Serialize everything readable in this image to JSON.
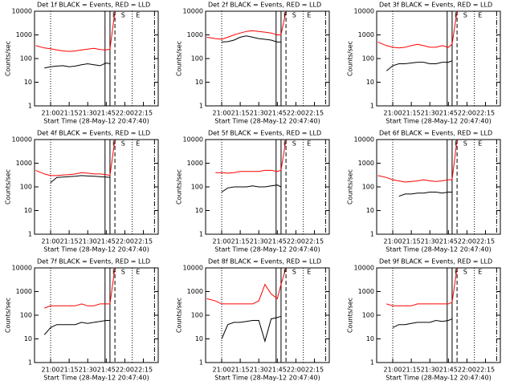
{
  "chart_data": [
    {
      "type": "line",
      "title": "Det 1f BLACK = Events, RED = LLD",
      "xlabel": "Start Time (28-May-12 20:47:40)",
      "ylabel": "Counts/sec",
      "log_y": true,
      "x": [
        "20:48",
        "20:55",
        "21:00",
        "21:05",
        "21:10",
        "21:15",
        "21:20",
        "21:25",
        "21:30",
        "21:35",
        "21:40",
        "21:45",
        "21:48",
        "21:52"
      ],
      "series": [
        {
          "name": "LLD",
          "color": "#ff0000",
          "values": [
            350,
            280,
            260,
            230,
            210,
            200,
            210,
            230,
            250,
            270,
            240,
            230,
            250,
            10000
          ]
        },
        {
          "name": "Events",
          "color": "#000000",
          "values": [
            null,
            40,
            45,
            48,
            50,
            45,
            48,
            55,
            60,
            55,
            50,
            65,
            60,
            null
          ]
        }
      ],
      "xlim": [
        "20:47",
        "22:27"
      ],
      "xticks": [
        "21:00",
        "21:15",
        "21:30",
        "21:45",
        "22:00",
        "22:15"
      ],
      "ylim": [
        1,
        10000
      ],
      "yticks": [
        1,
        10,
        100,
        1000,
        10000
      ],
      "vlines": [
        {
          "x": "21:00",
          "style": "dotted"
        },
        {
          "x": "21:44",
          "style": "solid"
        },
        {
          "x": "21:48",
          "style": "solid"
        },
        {
          "x": "21:52",
          "style": "dashed"
        },
        {
          "x": "22:06",
          "style": "dotted"
        },
        {
          "x": "22:24",
          "style": "dashdot"
        }
      ],
      "annotations": [
        {
          "text": "F",
          "x": "21:48"
        },
        {
          "text": "S",
          "x": "21:55"
        },
        {
          "text": "E",
          "x": "22:07"
        }
      ]
    },
    {
      "type": "line",
      "title": "Det 2f BLACK = Events, RED = LLD",
      "xlabel": "Start Time (28-May-12 20:47:40)",
      "ylabel": "Counts/sec",
      "log_y": true,
      "x": [
        "20:48",
        "20:55",
        "21:00",
        "21:05",
        "21:10",
        "21:15",
        "21:20",
        "21:25",
        "21:30",
        "21:35",
        "21:40",
        "21:45",
        "21:48",
        "21:52"
      ],
      "series": [
        {
          "name": "LLD",
          "color": "#ff0000",
          "values": [
            800,
            700,
            650,
            800,
            1000,
            1200,
            1400,
            1500,
            1400,
            1300,
            1200,
            1000,
            1000,
            10000
          ]
        },
        {
          "name": "Events",
          "color": "#000000",
          "values": [
            null,
            null,
            500,
            520,
            600,
            800,
            900,
            800,
            700,
            650,
            600,
            500,
            500,
            null
          ]
        }
      ],
      "xlim": [
        "20:47",
        "22:27"
      ],
      "xticks": [
        "21:00",
        "21:15",
        "21:30",
        "21:45",
        "22:00",
        "22:15"
      ],
      "ylim": [
        1,
        10000
      ],
      "yticks": [
        1,
        10,
        100,
        1000,
        10000
      ],
      "vlines": [
        {
          "x": "21:00",
          "style": "dotted"
        },
        {
          "x": "21:44",
          "style": "solid"
        },
        {
          "x": "21:48",
          "style": "solid"
        },
        {
          "x": "21:52",
          "style": "dashed"
        },
        {
          "x": "22:06",
          "style": "dotted"
        },
        {
          "x": "22:24",
          "style": "dashdot"
        }
      ],
      "annotations": [
        {
          "text": "F",
          "x": "21:48"
        },
        {
          "text": "S",
          "x": "21:55"
        },
        {
          "text": "E",
          "x": "22:07"
        }
      ]
    },
    {
      "type": "line",
      "title": "Det 3f BLACK = Events, RED = LLD",
      "xlabel": "Start Time (28-May-12 20:47:40)",
      "ylabel": "Counts/sec",
      "log_y": true,
      "x": [
        "20:48",
        "20:55",
        "21:00",
        "21:05",
        "21:10",
        "21:15",
        "21:20",
        "21:25",
        "21:30",
        "21:35",
        "21:40",
        "21:45",
        "21:48",
        "21:52"
      ],
      "series": [
        {
          "name": "LLD",
          "color": "#ff0000",
          "values": [
            500,
            350,
            300,
            280,
            300,
            350,
            400,
            350,
            300,
            300,
            350,
            300,
            400,
            10000
          ]
        },
        {
          "name": "Events",
          "color": "#000000",
          "values": [
            null,
            30,
            50,
            60,
            60,
            65,
            70,
            70,
            60,
            60,
            70,
            70,
            80,
            null
          ]
        }
      ],
      "xlim": [
        "20:47",
        "22:27"
      ],
      "xticks": [
        "21:00",
        "21:15",
        "21:30",
        "21:45",
        "22:00",
        "22:15"
      ],
      "ylim": [
        1,
        10000
      ],
      "yticks": [
        1,
        10,
        100,
        1000,
        10000
      ],
      "vlines": [
        {
          "x": "21:00",
          "style": "dotted"
        },
        {
          "x": "21:44",
          "style": "solid"
        },
        {
          "x": "21:48",
          "style": "solid"
        },
        {
          "x": "21:52",
          "style": "dashed"
        },
        {
          "x": "22:06",
          "style": "dotted"
        },
        {
          "x": "22:24",
          "style": "dashdot"
        }
      ],
      "annotations": [
        {
          "text": "F",
          "x": "21:48"
        },
        {
          "text": "S",
          "x": "21:55"
        },
        {
          "text": "E",
          "x": "22:07"
        }
      ]
    },
    {
      "type": "line",
      "title": "Det 4f BLACK = Events, RED = LLD",
      "xlabel": "Start Time (28-May-12 20:47:40)",
      "ylabel": "Counts/sec",
      "log_y": true,
      "x": [
        "20:48",
        "20:55",
        "21:00",
        "21:05",
        "21:10",
        "21:15",
        "21:20",
        "21:25",
        "21:30",
        "21:35",
        "21:40",
        "21:45",
        "21:48",
        "21:52"
      ],
      "series": [
        {
          "name": "LLD",
          "color": "#ff0000",
          "values": [
            500,
            350,
            300,
            300,
            320,
            330,
            350,
            400,
            380,
            350,
            350,
            330,
            300,
            10000
          ]
        },
        {
          "name": "Events",
          "color": "#000000",
          "values": [
            null,
            null,
            150,
            250,
            260,
            270,
            280,
            300,
            290,
            280,
            270,
            260,
            250,
            null
          ]
        }
      ],
      "xlim": [
        "20:47",
        "22:27"
      ],
      "xticks": [
        "21:00",
        "21:15",
        "21:30",
        "21:45",
        "22:00",
        "22:15"
      ],
      "ylim": [
        1,
        10000
      ],
      "yticks": [
        1,
        10,
        100,
        1000,
        10000
      ],
      "vlines": [
        {
          "x": "21:00",
          "style": "dotted"
        },
        {
          "x": "21:44",
          "style": "solid"
        },
        {
          "x": "21:48",
          "style": "solid"
        },
        {
          "x": "21:52",
          "style": "dashed"
        },
        {
          "x": "22:06",
          "style": "dotted"
        },
        {
          "x": "22:24",
          "style": "dashdot"
        }
      ],
      "annotations": [
        {
          "text": "F",
          "x": "21:48"
        },
        {
          "text": "S",
          "x": "21:55"
        },
        {
          "text": "E",
          "x": "22:07"
        }
      ]
    },
    {
      "type": "line",
      "title": "Det 5f BLACK = Events, RED = LLD",
      "xlabel": "Start Time (28-May-12 20:47:40)",
      "ylabel": "Counts/sec",
      "log_y": true,
      "x": [
        "20:48",
        "20:55",
        "21:00",
        "21:05",
        "21:10",
        "21:15",
        "21:20",
        "21:25",
        "21:30",
        "21:35",
        "21:40",
        "21:45",
        "21:48",
        "21:52"
      ],
      "series": [
        {
          "name": "LLD",
          "color": "#ff0000",
          "values": [
            null,
            400,
            400,
            380,
            400,
            450,
            450,
            450,
            450,
            500,
            500,
            450,
            500,
            10000
          ]
        },
        {
          "name": "Events",
          "color": "#000000",
          "values": [
            null,
            null,
            60,
            90,
            100,
            100,
            100,
            110,
            100,
            100,
            110,
            120,
            100,
            null
          ]
        }
      ],
      "xlim": [
        "20:47",
        "22:27"
      ],
      "xticks": [
        "21:00",
        "21:15",
        "21:30",
        "21:45",
        "22:00",
        "22:15"
      ],
      "ylim": [
        1,
        10000
      ],
      "yticks": [
        1,
        10,
        100,
        1000,
        10000
      ],
      "vlines": [
        {
          "x": "21:00",
          "style": "dotted"
        },
        {
          "x": "21:44",
          "style": "solid"
        },
        {
          "x": "21:48",
          "style": "solid"
        },
        {
          "x": "21:52",
          "style": "dashed"
        },
        {
          "x": "22:06",
          "style": "dotted"
        },
        {
          "x": "22:24",
          "style": "dashdot"
        }
      ],
      "annotations": [
        {
          "text": "F",
          "x": "21:48"
        },
        {
          "text": "S",
          "x": "21:55"
        },
        {
          "text": "E",
          "x": "22:07"
        }
      ]
    },
    {
      "type": "line",
      "title": "Det 6f BLACK = Events, RED = LLD",
      "xlabel": "Start Time (28-May-12 20:47:40)",
      "ylabel": "Counts/sec",
      "log_y": true,
      "x": [
        "20:48",
        "20:55",
        "21:00",
        "21:05",
        "21:10",
        "21:15",
        "21:20",
        "21:25",
        "21:30",
        "21:35",
        "21:40",
        "21:45",
        "21:48",
        "21:52"
      ],
      "series": [
        {
          "name": "LLD",
          "color": "#ff0000",
          "values": [
            300,
            250,
            200,
            180,
            160,
            170,
            180,
            200,
            180,
            170,
            180,
            200,
            200,
            10000
          ]
        },
        {
          "name": "Events",
          "color": "#000000",
          "values": [
            null,
            null,
            null,
            40,
            50,
            50,
            55,
            55,
            60,
            60,
            55,
            60,
            60,
            null
          ]
        }
      ],
      "xlim": [
        "20:47",
        "22:27"
      ],
      "xticks": [
        "21:00",
        "21:15",
        "21:30",
        "21:45",
        "22:00",
        "22:15"
      ],
      "ylim": [
        1,
        10000
      ],
      "yticks": [
        1,
        10,
        100,
        1000,
        10000
      ],
      "vlines": [
        {
          "x": "21:00",
          "style": "dotted"
        },
        {
          "x": "21:44",
          "style": "solid"
        },
        {
          "x": "21:48",
          "style": "solid"
        },
        {
          "x": "21:52",
          "style": "dashed"
        },
        {
          "x": "22:06",
          "style": "dotted"
        },
        {
          "x": "22:24",
          "style": "dashdot"
        }
      ],
      "annotations": [
        {
          "text": "F",
          "x": "21:48"
        },
        {
          "text": "S",
          "x": "21:55"
        },
        {
          "text": "E",
          "x": "22:07"
        }
      ]
    },
    {
      "type": "line",
      "title": "Det 7f BLACK = Events, RED = LLD",
      "xlabel": "Start Time (28-May-12 20:47:40)",
      "ylabel": "Counts/sec",
      "log_y": true,
      "x": [
        "20:48",
        "20:55",
        "21:00",
        "21:05",
        "21:10",
        "21:15",
        "21:20",
        "21:25",
        "21:30",
        "21:35",
        "21:40",
        "21:45",
        "21:48",
        "21:52"
      ],
      "series": [
        {
          "name": "LLD",
          "color": "#ff0000",
          "values": [
            null,
            200,
            250,
            250,
            250,
            250,
            250,
            300,
            250,
            250,
            300,
            300,
            300,
            10000
          ]
        },
        {
          "name": "Events",
          "color": "#000000",
          "values": [
            null,
            15,
            30,
            40,
            40,
            40,
            40,
            50,
            45,
            50,
            55,
            60,
            60,
            null
          ]
        }
      ],
      "xlim": [
        "20:47",
        "22:27"
      ],
      "xticks": [
        "21:00",
        "21:15",
        "21:30",
        "21:45",
        "22:00",
        "22:15"
      ],
      "ylim": [
        1,
        10000
      ],
      "yticks": [
        1,
        10,
        100,
        1000,
        10000
      ],
      "vlines": [
        {
          "x": "21:00",
          "style": "dotted"
        },
        {
          "x": "21:44",
          "style": "solid"
        },
        {
          "x": "21:48",
          "style": "solid"
        },
        {
          "x": "21:52",
          "style": "dashed"
        },
        {
          "x": "22:06",
          "style": "dotted"
        },
        {
          "x": "22:24",
          "style": "dashdot"
        }
      ],
      "annotations": [
        {
          "text": "F",
          "x": "21:48"
        },
        {
          "text": "S",
          "x": "21:55"
        },
        {
          "text": "E",
          "x": "22:07"
        }
      ]
    },
    {
      "type": "line",
      "title": "Det 8f BLACK = Events, RED = LLD",
      "xlabel": "Start Time (28-May-12 20:47:40)",
      "ylabel": "Counts/sec",
      "log_y": true,
      "x": [
        "20:48",
        "20:55",
        "21:00",
        "21:05",
        "21:10",
        "21:15",
        "21:20",
        "21:25",
        "21:30",
        "21:35",
        "21:40",
        "21:45",
        "21:48",
        "21:52"
      ],
      "series": [
        {
          "name": "LLD",
          "color": "#ff0000",
          "values": [
            500,
            400,
            300,
            300,
            300,
            300,
            300,
            300,
            400,
            2000,
            800,
            500,
            2000,
            10000
          ]
        },
        {
          "name": "Events",
          "color": "#000000",
          "values": [
            null,
            null,
            10,
            40,
            50,
            50,
            55,
            60,
            60,
            8,
            70,
            80,
            90,
            null
          ]
        }
      ],
      "xlim": [
        "20:47",
        "22:27"
      ],
      "xticks": [
        "21:00",
        "21:15",
        "21:30",
        "21:45",
        "22:00",
        "22:15"
      ],
      "ylim": [
        1,
        10000
      ],
      "yticks": [
        1,
        10,
        100,
        1000,
        10000
      ],
      "vlines": [
        {
          "x": "21:00",
          "style": "dotted"
        },
        {
          "x": "21:44",
          "style": "solid"
        },
        {
          "x": "21:48",
          "style": "solid"
        },
        {
          "x": "21:52",
          "style": "dashed"
        },
        {
          "x": "22:06",
          "style": "dotted"
        },
        {
          "x": "22:24",
          "style": "dashdot"
        }
      ],
      "annotations": [
        {
          "text": "F",
          "x": "21:48"
        },
        {
          "text": "S",
          "x": "21:55"
        },
        {
          "text": "E",
          "x": "22:07"
        }
      ]
    },
    {
      "type": "line",
      "title": "Det 9f BLACK = Events, RED = LLD",
      "xlabel": "Start Time (28-May-12 20:47:40)",
      "ylabel": "Counts/sec",
      "log_y": true,
      "x": [
        "20:48",
        "20:55",
        "21:00",
        "21:05",
        "21:10",
        "21:15",
        "21:20",
        "21:25",
        "21:30",
        "21:35",
        "21:40",
        "21:45",
        "21:48",
        "21:52"
      ],
      "series": [
        {
          "name": "LLD",
          "color": "#ff0000",
          "values": [
            null,
            300,
            250,
            250,
            250,
            250,
            300,
            300,
            300,
            300,
            300,
            300,
            350,
            10000
          ]
        },
        {
          "name": "Events",
          "color": "#000000",
          "values": [
            null,
            null,
            30,
            40,
            40,
            45,
            50,
            50,
            50,
            60,
            55,
            60,
            70,
            null
          ]
        }
      ],
      "xlim": [
        "20:47",
        "22:27"
      ],
      "xticks": [
        "21:00",
        "21:15",
        "21:30",
        "21:45",
        "22:00",
        "22:15"
      ],
      "ylim": [
        1,
        10000
      ],
      "yticks": [
        1,
        10,
        100,
        1000,
        10000
      ],
      "vlines": [
        {
          "x": "21:00",
          "style": "dotted"
        },
        {
          "x": "21:44",
          "style": "solid"
        },
        {
          "x": "21:48",
          "style": "solid"
        },
        {
          "x": "21:52",
          "style": "dashed"
        },
        {
          "x": "22:06",
          "style": "dotted"
        },
        {
          "x": "22:24",
          "style": "dashdot"
        }
      ],
      "annotations": [
        {
          "text": "F",
          "x": "21:48"
        },
        {
          "text": "S",
          "x": "21:55"
        },
        {
          "text": "E",
          "x": "22:07"
        }
      ]
    }
  ]
}
